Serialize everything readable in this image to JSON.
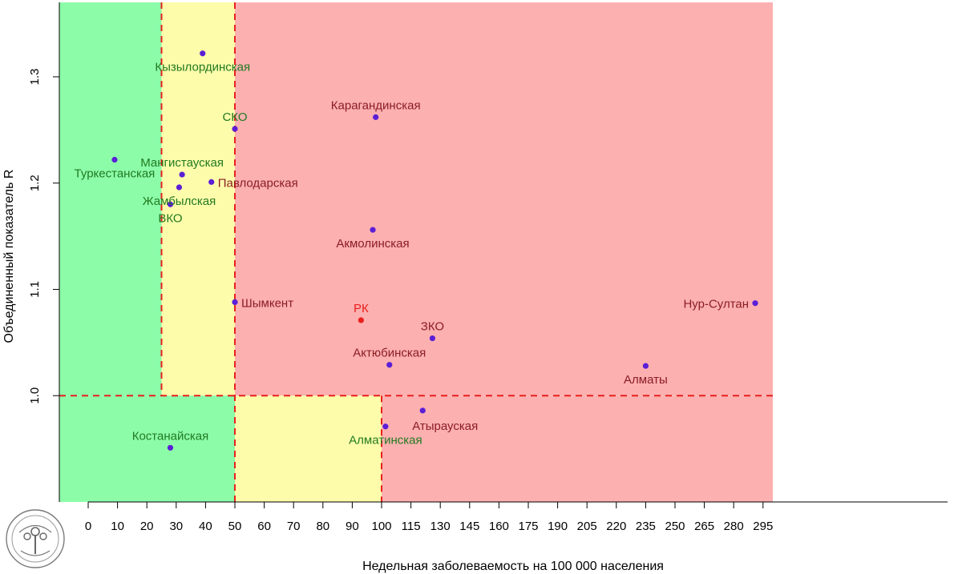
{
  "chart_data": {
    "type": "scatter",
    "xlabel": "Недельная заболеваемость на 100 000 населения",
    "ylabel": "Объединенный показатель R",
    "x_ticks": [
      0,
      10,
      20,
      30,
      40,
      50,
      60,
      70,
      80,
      90,
      100,
      115,
      130,
      145,
      160,
      175,
      190,
      205,
      220,
      235,
      250,
      265,
      280,
      295
    ],
    "y_ticks": [
      1.0,
      1.1,
      1.2,
      1.3
    ],
    "y_tick_labels": [
      "1.0",
      "1.1",
      "1.2",
      "1.3"
    ],
    "ylim": [
      0.9,
      1.37
    ],
    "grid": false,
    "zones": [
      {
        "name": "green-top",
        "color": "#8cfca9",
        "x": [
          -10,
          25
        ],
        "y": [
          1.0,
          1.37
        ]
      },
      {
        "name": "yellow-top",
        "color": "#fdfcaa",
        "x": [
          25,
          50
        ],
        "y": [
          1.0,
          1.37
        ]
      },
      {
        "name": "red-top",
        "color": "#fcb0b0",
        "x": [
          50,
          300
        ],
        "y": [
          1.0,
          1.37
        ]
      },
      {
        "name": "green-bottom",
        "color": "#8cfca9",
        "x": [
          -10,
          50
        ],
        "y": [
          0.9,
          1.0
        ]
      },
      {
        "name": "yellow-bottom",
        "color": "#fdfcaa",
        "x": [
          50,
          100
        ],
        "y": [
          0.9,
          1.0
        ]
      },
      {
        "name": "red-bottom",
        "color": "#fcb0b0",
        "x": [
          100,
          300
        ],
        "y": [
          0.9,
          1.0
        ]
      }
    ],
    "threshold_lines": [
      {
        "orientation": "v",
        "x": 25,
        "y": [
          1.0,
          1.37
        ],
        "color": "#e8201e"
      },
      {
        "orientation": "v",
        "x": 50,
        "y": [
          0.9,
          1.37
        ],
        "color": "#e8201e"
      },
      {
        "orientation": "v",
        "x": 100,
        "y": [
          0.9,
          1.0
        ],
        "color": "#e8201e"
      },
      {
        "orientation": "h",
        "y": 1.0,
        "x": [
          -10,
          300
        ],
        "color": "#e8201e"
      }
    ],
    "points": [
      {
        "name": "Кызылординская",
        "x": 39,
        "y": 1.322,
        "label_color": "#217a21",
        "label_pos": "below"
      },
      {
        "name": "СКО",
        "x": 50,
        "y": 1.251,
        "label_color": "#217a21",
        "label_pos": "above"
      },
      {
        "name": "Карагандинская",
        "x": 98,
        "y": 1.262,
        "label_color": "#8b1d24",
        "label_pos": "above"
      },
      {
        "name": "Туркестанская",
        "x": 9,
        "y": 1.222,
        "label_color": "#217a21",
        "label_pos": "below"
      },
      {
        "name": "Мангистауская",
        "x": 32,
        "y": 1.208,
        "label_color": "#217a21",
        "label_pos": "above"
      },
      {
        "name": "Павлодарская",
        "x": 42,
        "y": 1.201,
        "label_color": "#8b1d24",
        "label_pos": "right"
      },
      {
        "name": "Жамбылская",
        "x": 31,
        "y": 1.196,
        "label_color": "#217a21",
        "label_pos": "below"
      },
      {
        "name": "ВКО",
        "x": 28,
        "y": 1.18,
        "label_color": "#217a21",
        "label_pos": "below"
      },
      {
        "name": "Акмолинская",
        "x": 97,
        "y": 1.156,
        "label_color": "#8b1d24",
        "label_pos": "below"
      },
      {
        "name": "Шымкент",
        "x": 50,
        "y": 1.088,
        "label_color": "#8b1d24",
        "label_pos": "right"
      },
      {
        "name": "РК",
        "x": 93,
        "y": 1.071,
        "label_color": "#e8201e",
        "label_pos": "above",
        "point_color": "#e8201e"
      },
      {
        "name": "ЗКО",
        "x": 126,
        "y": 1.054,
        "label_color": "#8b1d24",
        "label_pos": "above"
      },
      {
        "name": "Актюбинская",
        "x": 104,
        "y": 1.029,
        "label_color": "#8b1d24",
        "label_pos": "above"
      },
      {
        "name": "Нур-Султан",
        "x": 291,
        "y": 1.087,
        "label_color": "#8b1d24",
        "label_pos": "left"
      },
      {
        "name": "Алматы",
        "x": 235,
        "y": 1.028,
        "label_color": "#8b1d24",
        "label_pos": "below"
      },
      {
        "name": "Атырауская",
        "x": 121,
        "y": 0.986,
        "label_color": "#8b1d24",
        "label_pos": "below-right"
      },
      {
        "name": "Алматинская",
        "x": 102,
        "y": 0.971,
        "label_color": "#217a21",
        "label_pos": "below"
      },
      {
        "name": "Костанайская",
        "x": 28,
        "y": 0.951,
        "label_color": "#217a21",
        "label_pos": "above"
      }
    ],
    "point_color_default": "#5b1fd6",
    "legend": "none"
  },
  "logo": {
    "name": "emblem-logo",
    "stroke": "#6b6b6b"
  }
}
